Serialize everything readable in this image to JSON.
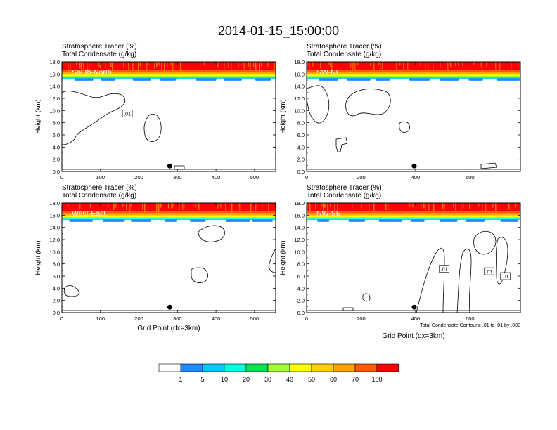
{
  "title": "2014-01-15_15:00:00",
  "panel_subtitle_1": "Stratosphere Tracer   (%)",
  "panel_subtitle_2": "Total Condensate   (g/kg)",
  "ylabel": "Height (km)",
  "xlabel": "Grid Point (dx=3km)",
  "contour_note": "Total Condensate Contours: .01 to .01 by .000",
  "contour_label": ".01",
  "colorbar": {
    "labels": [
      "1",
      "5",
      "10",
      "20",
      "30",
      "40",
      "50",
      "60",
      "70",
      "100"
    ],
    "colors": [
      "#ffffff",
      "#1e8cff",
      "#00c8ff",
      "#00ffe0",
      "#00e650",
      "#a0ff30",
      "#ffff00",
      "#ffd000",
      "#ffa000",
      "#ff5a00",
      "#ff0000"
    ]
  },
  "chart_data": [
    {
      "type": "heatmap",
      "name": "South-North",
      "ylim": [
        0,
        18
      ],
      "xlim": [
        0,
        555
      ],
      "yticks": [
        "0.0",
        "2.0",
        "4.0",
        "6.0",
        "8.0",
        "10.0",
        "12.0",
        "14.0",
        "16.0",
        "18.0"
      ],
      "xticks": [
        0,
        100,
        200,
        300,
        400,
        500
      ],
      "marker_x": 280,
      "contour_labels": [
        {
          "x": 170,
          "y": 9.5
        }
      ]
    },
    {
      "type": "heatmap",
      "name": "SW-NE",
      "ylim": [
        0,
        18
      ],
      "xlim": [
        0,
        785
      ],
      "yticks": [
        "0.0",
        "2.0",
        "4.0",
        "6.0",
        "8.0",
        "10.0",
        "12.0",
        "14.0",
        "16.0",
        "18.0"
      ],
      "xticks": [
        0,
        200,
        400,
        600
      ],
      "marker_x": 395,
      "contour_labels": []
    },
    {
      "type": "heatmap",
      "name": "West-East",
      "ylim": [
        0,
        18
      ],
      "xlim": [
        0,
        555
      ],
      "yticks": [
        "0.0",
        "2.0",
        "4.0",
        "6.0",
        "8.0",
        "10.0",
        "12.0",
        "14.0",
        "16.0",
        "18.0"
      ],
      "xticks": [
        0,
        100,
        200,
        300,
        400,
        500
      ],
      "marker_x": 280,
      "contour_labels": []
    },
    {
      "type": "heatmap",
      "name": "NW-SE",
      "ylim": [
        0,
        18
      ],
      "xlim": [
        0,
        785
      ],
      "yticks": [
        "0.0",
        "2.0",
        "4.0",
        "6.0",
        "8.0",
        "10.0",
        "12.0",
        "14.0",
        "16.0",
        "18.0"
      ],
      "xticks": [
        0,
        200,
        400,
        600
      ],
      "marker_x": 395,
      "contour_labels": [
        {
          "x": 505,
          "y": 7.2
        },
        {
          "x": 670,
          "y": 6.8
        },
        {
          "x": 730,
          "y": 6.0
        }
      ]
    }
  ]
}
